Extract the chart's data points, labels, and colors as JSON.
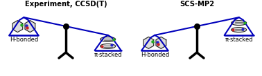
{
  "title_left": "Experiment, CCSD(T)",
  "title_right": "SCS-MP2",
  "label_hbonded": "H-bonded",
  "label_pistacked": "π-stacked",
  "bg_color": "#ffffff",
  "blue": "#0000bb",
  "black": "#000000",
  "title_fontsize": 7.2,
  "label_fontsize": 6.0,
  "fig_width": 3.78,
  "fig_height": 1.1
}
